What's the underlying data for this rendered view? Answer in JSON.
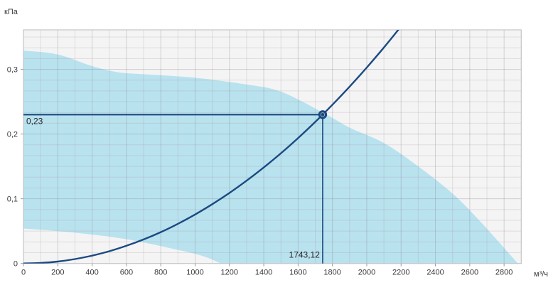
{
  "chart_data": {
    "type": "area+line",
    "title": "",
    "xlabel": "м³/ч",
    "ylabel": "кПа",
    "xlim": [
      0,
      2900
    ],
    "ylim": [
      0,
      0.361
    ],
    "x_tick_step": 200,
    "x_tick_labels": [
      "0",
      "200",
      "400",
      "600",
      "800",
      "1000",
      "1200",
      "1400",
      "1600",
      "1800",
      "2000",
      "2200",
      "2400",
      "2600",
      "2800"
    ],
    "y_ticks": [
      0,
      0.1,
      0.2,
      0.3
    ],
    "y_tick_labels": [
      "0",
      "0,1",
      "0,2",
      "0,3"
    ],
    "grid": {
      "x_minor_step": 100,
      "y_minor_divisions": 6,
      "on": true
    },
    "series": [
      {
        "name": "operating-envelope",
        "type": "area",
        "color": "#b9e2ef",
        "upper": [
          [
            0,
            0.329
          ],
          [
            200,
            0.323
          ],
          [
            400,
            0.305
          ],
          [
            550,
            0.2955
          ],
          [
            700,
            0.2925
          ],
          [
            1000,
            0.287
          ],
          [
            1300,
            0.2765
          ],
          [
            1500,
            0.2655
          ],
          [
            1743,
            0.2335
          ],
          [
            1900,
            0.21
          ],
          [
            2100,
            0.186
          ],
          [
            2300,
            0.15
          ],
          [
            2500,
            0.108
          ],
          [
            2650,
            0.068
          ],
          [
            2780,
            0.03
          ],
          [
            2880,
            0
          ]
        ],
        "lower": [
          [
            0,
            0.054
          ],
          [
            300,
            0.0475
          ],
          [
            600,
            0.0375
          ],
          [
            900,
            0.021
          ],
          [
            1050,
            0.011
          ],
          [
            1150,
            0
          ]
        ]
      },
      {
        "name": "system-resistance-curve",
        "type": "line",
        "color": "#1b4a80",
        "points": [
          [
            0,
            0
          ],
          [
            100,
            0.0008
          ],
          [
            200,
            0.003
          ],
          [
            300,
            0.0068
          ],
          [
            400,
            0.0121
          ],
          [
            500,
            0.0189
          ],
          [
            600,
            0.0273
          ],
          [
            700,
            0.0371
          ],
          [
            800,
            0.0484
          ],
          [
            900,
            0.0613
          ],
          [
            1000,
            0.0757
          ],
          [
            1100,
            0.0916
          ],
          [
            1200,
            0.109
          ],
          [
            1300,
            0.1279
          ],
          [
            1400,
            0.1484
          ],
          [
            1500,
            0.1703
          ],
          [
            1600,
            0.1938
          ],
          [
            1700,
            0.2188
          ],
          [
            1800,
            0.2453
          ],
          [
            1900,
            0.2733
          ],
          [
            2000,
            0.3028
          ],
          [
            2100,
            0.3338
          ],
          [
            2200,
            0.3664
          ]
        ]
      }
    ],
    "operating_point": {
      "x": 1743.12,
      "y": 0.23,
      "x_label": "1743,12",
      "y_label": "0,23"
    },
    "colors": {
      "accent": "#1b4a80",
      "area": "#b9e2ef",
      "plot_background": "#f4f4f5",
      "grid_minor": "rgba(165,135,135,0.22)",
      "grid_major": "rgba(115,115,125,0.28)",
      "frame": "#c5c5c7",
      "text": "#3b3b3b"
    },
    "legend": null
  }
}
